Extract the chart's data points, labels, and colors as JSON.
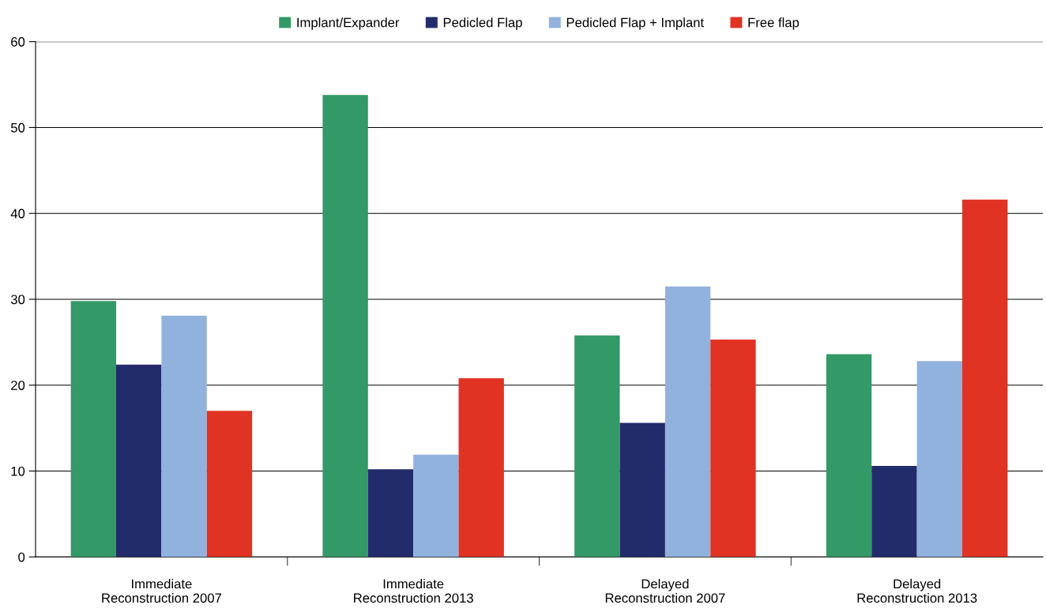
{
  "chart_data": {
    "type": "bar",
    "categories": [
      "Immediate\nReconstruction 2007",
      "Immediate\nReconstruction 2013",
      "Delayed\nReconstruction 2007",
      "Delayed\nReconstruction 2013"
    ],
    "series": [
      {
        "name": "Implant/Expander",
        "color": "#339966",
        "values": [
          29.8,
          53.8,
          25.8,
          23.6
        ]
      },
      {
        "name": "Pedicled Flap",
        "color": "#232c6b",
        "values": [
          22.4,
          10.2,
          15.6,
          10.6
        ]
      },
      {
        "name": "Pedicled Flap + Implant",
        "color": "#92b2de",
        "values": [
          28.1,
          11.9,
          31.5,
          22.8
        ]
      },
      {
        "name": "Free flap",
        "color": "#e03323",
        "values": [
          17.0,
          20.8,
          25.3,
          41.6
        ]
      }
    ],
    "ylim": [
      0,
      60
    ],
    "yticks": [
      0,
      10,
      20,
      30,
      40,
      50,
      60
    ],
    "grid": "y",
    "legend": "top"
  }
}
